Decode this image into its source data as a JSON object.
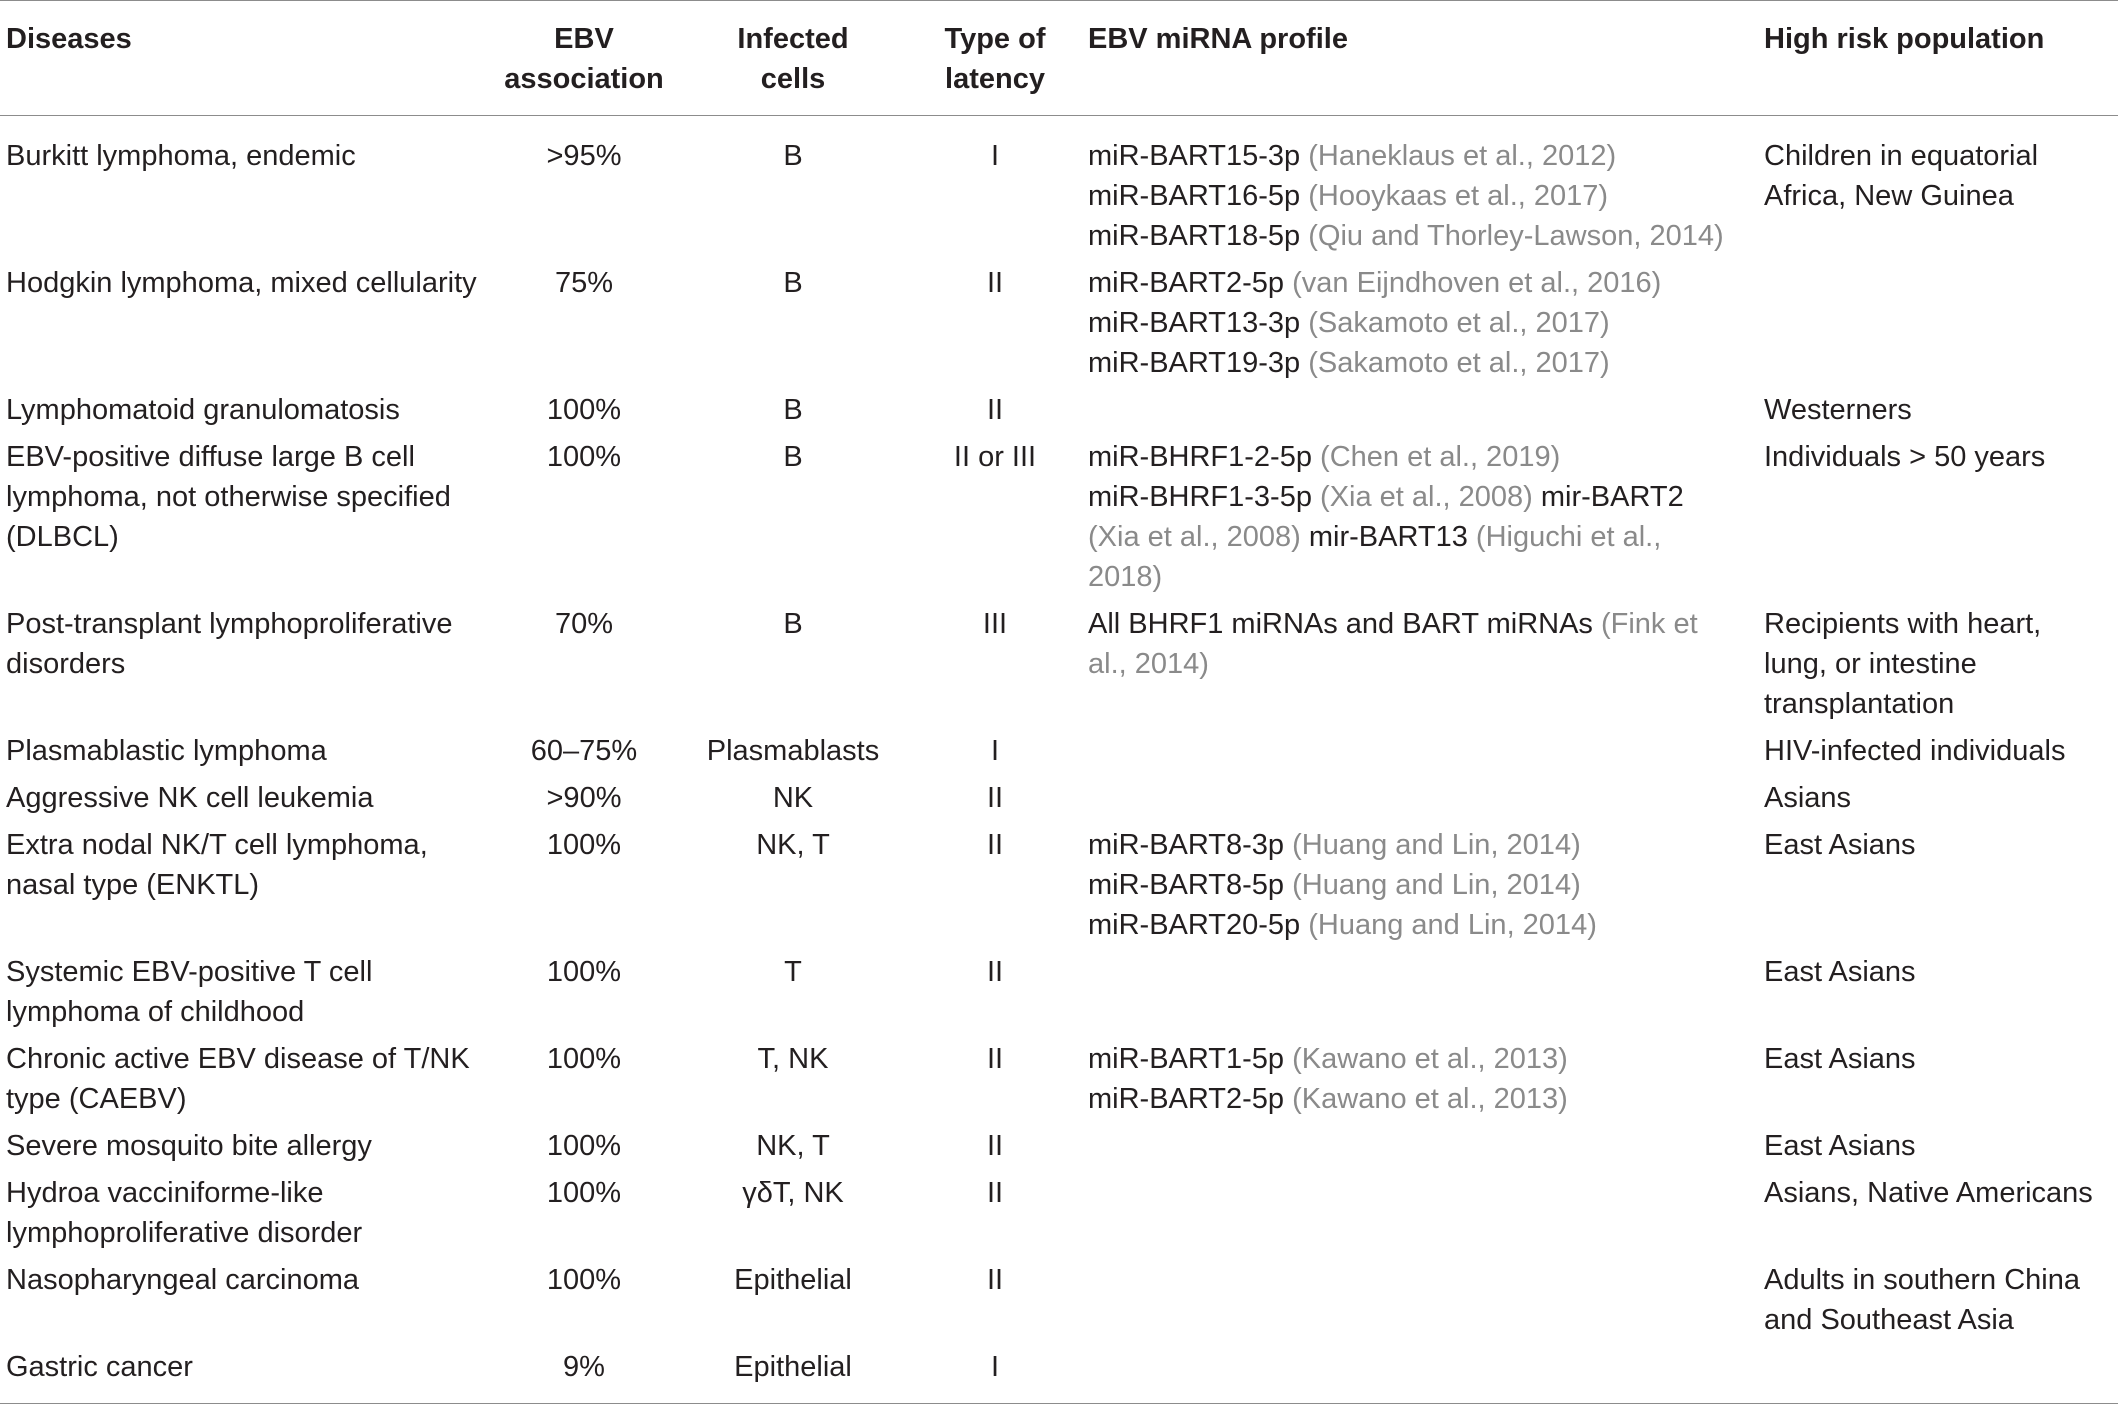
{
  "headers": [
    {
      "line1": "Diseases",
      "line2": ""
    },
    {
      "line1": "EBV",
      "line2": "association"
    },
    {
      "line1": "Infected",
      "line2": "cells"
    },
    {
      "line1": "Type of",
      "line2": "latency"
    },
    {
      "line1": "EBV miRNA profile",
      "line2": ""
    },
    {
      "line1": "High risk population",
      "line2": ""
    }
  ],
  "rows": [
    {
      "disease": "Burkitt lymphoma, endemic",
      "association": ">95%",
      "cells": "B",
      "latency": "I",
      "mirna": [
        {
          "name": "miR-BART15-3p ",
          "ref": "(Haneklaus et al., 2012)"
        },
        {
          "name": "miR-BART16-5p ",
          "ref": "(Hooykaas et al., 2017)"
        },
        {
          "name": "miR-BART18-5p ",
          "ref": "(Qiu and Thorley-Lawson, 2014)"
        }
      ],
      "population": "Children in equatorial Africa, New Guinea"
    },
    {
      "disease": "Hodgkin lymphoma, mixed cellularity",
      "association": "75%",
      "cells": "B",
      "latency": "II",
      "mirna": [
        {
          "name": "miR-BART2-5p ",
          "ref": "(van Eijndhoven et al., 2016)"
        },
        {
          "name": "miR-BART13-3p ",
          "ref": "(Sakamoto et al., 2017)"
        },
        {
          "name": "miR-BART19-3p ",
          "ref": "(Sakamoto et al., 2017)"
        }
      ],
      "population": ""
    },
    {
      "disease": "Lymphomatoid granulomatosis",
      "association": "100%",
      "cells": "B",
      "latency": "II",
      "mirna": [],
      "population": "Westerners"
    },
    {
      "disease": "EBV-positive diffuse large B cell lymphoma, not otherwise specified (DLBCL)",
      "association": "100%",
      "cells": "B",
      "latency": "II or III",
      "mirna_flow": [
        {
          "name": "miR-BHRF1-2-5p ",
          "ref": "(Chen et al., 2019)",
          "break": true
        },
        {
          "name": "miR-BHRF1-3-5p ",
          "ref": "(Xia et al., 2008)",
          "break": false
        },
        {
          "name": " mir-BART2 ",
          "ref": "(Xia et al., 2008)",
          "break": false
        },
        {
          "name": " mir-BART13 ",
          "ref": "(Higuchi et al., 2018)",
          "break": false
        }
      ],
      "population": "Individuals > 50 years"
    },
    {
      "disease": "Post-transplant lymphoproliferative disorders",
      "association": "70%",
      "cells": "B",
      "latency": "III",
      "mirna_flow": [
        {
          "name": "All BHRF1 miRNAs and BART miRNAs ",
          "ref": "(Fink et al., 2014)",
          "break": false
        }
      ],
      "population": "Recipients with heart, lung, or intestine transplantation"
    },
    {
      "disease": "Plasmablastic lymphoma",
      "association": "60–75%",
      "cells": "Plasmablasts",
      "latency": "I",
      "mirna": [],
      "population": "HIV-infected individuals"
    },
    {
      "disease": "Aggressive NK cell leukemia",
      "association": ">90%",
      "cells": "NK",
      "latency": "II",
      "mirna": [],
      "population": "Asians"
    },
    {
      "disease": "Extra nodal NK/T cell lymphoma, nasal type (ENKTL)",
      "association": "100%",
      "cells": "NK, T",
      "latency": "II",
      "mirna": [
        {
          "name": "miR-BART8-3p ",
          "ref": "(Huang and Lin, 2014)"
        },
        {
          "name": "miR-BART8-5p ",
          "ref": "(Huang and Lin, 2014)"
        },
        {
          "name": "miR-BART20-5p ",
          "ref": "(Huang and Lin, 2014)"
        }
      ],
      "population": "East Asians"
    },
    {
      "disease": "Systemic EBV-positive T cell lymphoma of childhood",
      "association": "100%",
      "cells": "T",
      "latency": "II",
      "mirna": [],
      "population": "East Asians"
    },
    {
      "disease": "Chronic active EBV disease of T/NK type (CAEBV)",
      "association": "100%",
      "cells": "T, NK",
      "latency": "II",
      "mirna": [
        {
          "name": "miR-BART1-5p ",
          "ref": "(Kawano et al., 2013)"
        },
        {
          "name": "miR-BART2-5p ",
          "ref": "(Kawano et al., 2013)"
        }
      ],
      "population": "East Asians"
    },
    {
      "disease": "Severe mosquito bite allergy",
      "association": "100%",
      "cells": "NK, T",
      "latency": "II",
      "mirna": [],
      "population": "East Asians"
    },
    {
      "disease": "Hydroa vacciniforme-like lymphoproliferative disorder",
      "association": "100%",
      "cells": "γδT, NK",
      "latency": "II",
      "mirna": [],
      "population": "Asians, Native Americans"
    },
    {
      "disease": "Nasopharyngeal carcinoma",
      "association": "100%",
      "cells": "Epithelial",
      "latency": "II",
      "mirna": [],
      "population": "Adults in southern China and Southeast Asia"
    },
    {
      "disease": "Gastric cancer",
      "association": "9%",
      "cells": "Epithelial",
      "latency": "I",
      "mirna": [],
      "population": ""
    }
  ]
}
